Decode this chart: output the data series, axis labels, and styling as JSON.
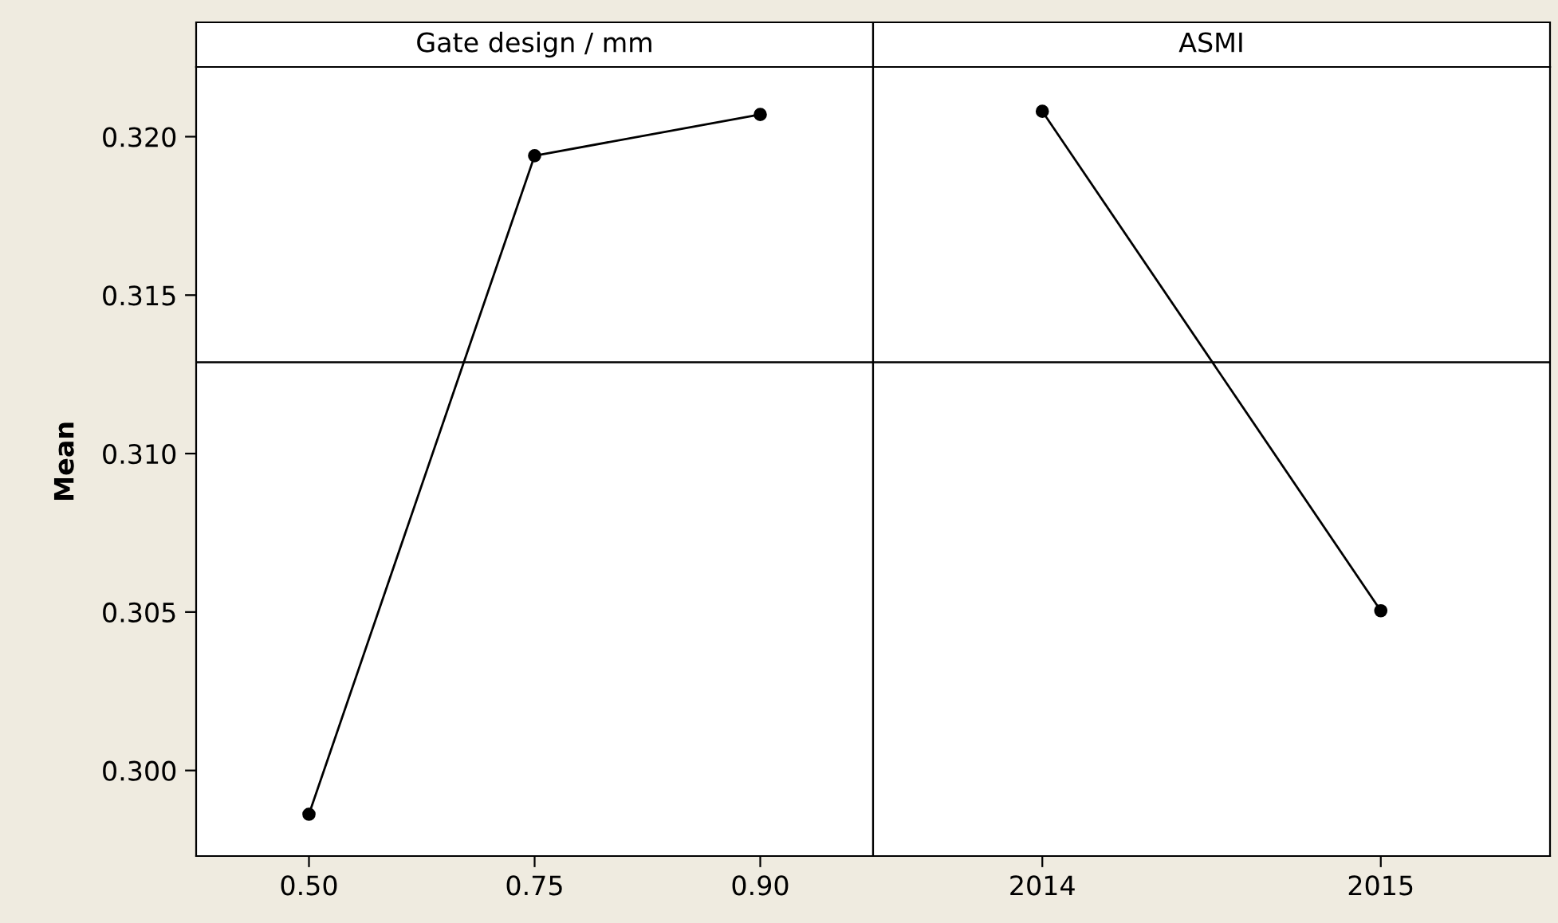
{
  "chart_data": [
    {
      "type": "line",
      "title": "Gate design / mm",
      "ylabel": "Mean",
      "categories": [
        "0.50",
        "0.75",
        "0.90"
      ],
      "series": [
        {
          "color": "#000000",
          "values": [
            0.29862,
            0.3194,
            0.3207
          ]
        }
      ],
      "ylim": [
        0.2973,
        0.3222
      ],
      "yticks": [
        {
          "value": 0.3,
          "label": "0.300"
        },
        {
          "value": 0.305,
          "label": "0.305"
        },
        {
          "value": 0.31,
          "label": "0.310"
        },
        {
          "value": 0.315,
          "label": "0.315"
        },
        {
          "value": 0.32,
          "label": "0.320"
        }
      ],
      "ref_lines": [
        {
          "axis": "y",
          "value": 0.31288,
          "color": "#000000"
        }
      ],
      "marker": "circle",
      "line_style": "solid"
    },
    {
      "type": "line",
      "title": "ASMI",
      "categories": [
        "2014",
        "2015"
      ],
      "series": [
        {
          "color": "#000000",
          "values": [
            0.3208,
            0.30504
          ]
        }
      ],
      "ylim": [
        0.2973,
        0.3222
      ],
      "ref_lines": [
        {
          "axis": "y",
          "value": 0.31288,
          "color": "#000000"
        }
      ],
      "marker": "circle",
      "line_style": "solid",
      "tick_labels": "x"
    }
  ]
}
